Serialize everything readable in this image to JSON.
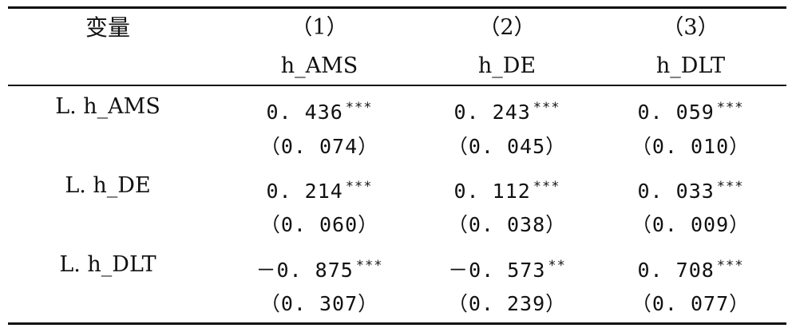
{
  "header": {
    "variable_label": "变量",
    "columns": [
      {
        "number": "（1）",
        "name": "h_AMS"
      },
      {
        "number": "（2）",
        "name": "h_DE"
      },
      {
        "number": "（3）",
        "name": "h_DLT"
      }
    ]
  },
  "rows": [
    {
      "label": "L. h_AMS",
      "coef": [
        {
          "value": "0. 436",
          "stars": "***"
        },
        {
          "value": "0. 243",
          "stars": "***"
        },
        {
          "value": "0. 059",
          "stars": "***"
        }
      ],
      "se": [
        "（0. 074）",
        "（0. 045）",
        "（0. 010）"
      ]
    },
    {
      "label": "L. h_DE",
      "coef": [
        {
          "value": "0. 214",
          "stars": "***"
        },
        {
          "value": "0. 112",
          "stars": "***"
        },
        {
          "value": "0. 033",
          "stars": "***"
        }
      ],
      "se": [
        "（0. 060）",
        "（0. 038）",
        "（0. 009）"
      ]
    },
    {
      "label": "L. h_DLT",
      "coef": [
        {
          "value": "－0. 875",
          "stars": "***"
        },
        {
          "value": "－0. 573",
          "stars": "**"
        },
        {
          "value": "0. 708",
          "stars": "***"
        }
      ],
      "se": [
        "（0. 307）",
        "（0. 239）",
        "（0. 077）"
      ]
    }
  ]
}
